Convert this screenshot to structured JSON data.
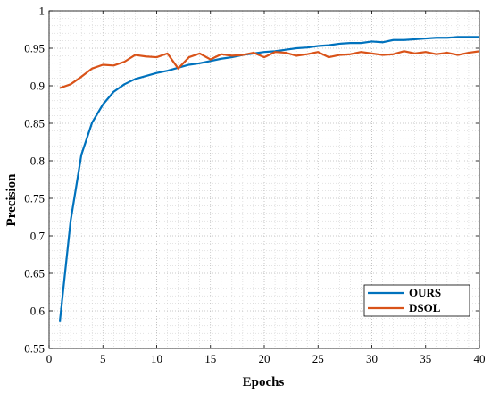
{
  "chart_data": {
    "type": "line",
    "xlabel": "Epochs",
    "ylabel": "Precision",
    "xlim": [
      0,
      40
    ],
    "ylim": [
      0.55,
      1
    ],
    "xticks": [
      0,
      5,
      10,
      15,
      20,
      25,
      30,
      35,
      40
    ],
    "yticks": [
      0.55,
      0.6,
      0.65,
      0.7,
      0.75,
      0.8,
      0.85,
      0.9,
      0.95,
      1
    ],
    "x_tick_labels": [
      "0",
      "5",
      "10",
      "15",
      "20",
      "25",
      "30",
      "35",
      "40"
    ],
    "y_tick_labels": [
      "0.55",
      "0.6",
      "0.65",
      "0.7",
      "0.75",
      "0.8",
      "0.85",
      "0.9",
      "0.95",
      "1"
    ],
    "grid": true,
    "minor_grid": true,
    "legend_position": "bottom-right",
    "x": [
      1,
      2,
      3,
      4,
      5,
      6,
      7,
      8,
      9,
      10,
      11,
      12,
      13,
      14,
      15,
      16,
      17,
      18,
      19,
      20,
      21,
      22,
      23,
      24,
      25,
      26,
      27,
      28,
      29,
      30,
      31,
      32,
      33,
      34,
      35,
      36,
      37,
      38,
      39,
      40
    ],
    "series": [
      {
        "name": "OURS",
        "color": "#0072BD",
        "values": [
          0.586,
          0.72,
          0.808,
          0.851,
          0.875,
          0.892,
          0.902,
          0.909,
          0.913,
          0.917,
          0.92,
          0.924,
          0.928,
          0.93,
          0.933,
          0.936,
          0.938,
          0.941,
          0.943,
          0.945,
          0.946,
          0.948,
          0.95,
          0.951,
          0.953,
          0.954,
          0.956,
          0.957,
          0.957,
          0.959,
          0.958,
          0.961,
          0.961,
          0.962,
          0.963,
          0.964,
          0.964,
          0.965,
          0.965,
          0.965
        ]
      },
      {
        "name": "DSOL",
        "color": "#D95319",
        "values": [
          0.897,
          0.902,
          0.912,
          0.923,
          0.928,
          0.927,
          0.932,
          0.941,
          0.939,
          0.938,
          0.943,
          0.923,
          0.938,
          0.943,
          0.935,
          0.942,
          0.94,
          0.941,
          0.944,
          0.938,
          0.945,
          0.944,
          0.94,
          0.942,
          0.945,
          0.938,
          0.941,
          0.942,
          0.945,
          0.943,
          0.941,
          0.942,
          0.946,
          0.943,
          0.945,
          0.942,
          0.944,
          0.941,
          0.944,
          0.946
        ]
      }
    ]
  }
}
